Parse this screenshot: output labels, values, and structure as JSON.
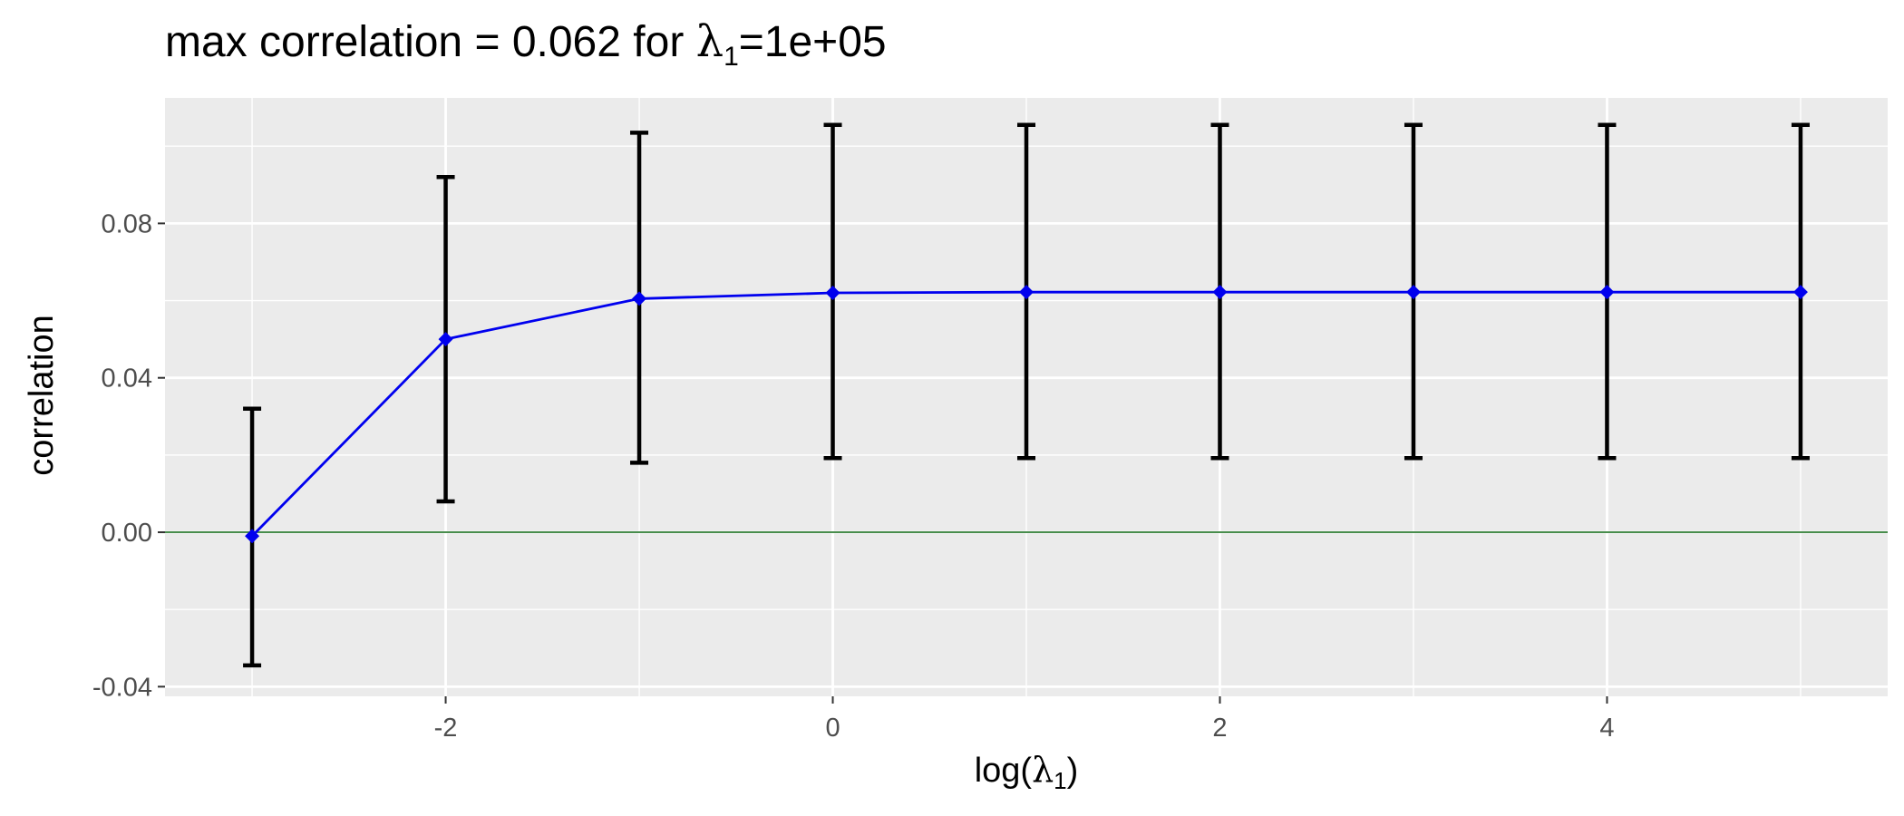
{
  "chart_data": {
    "type": "line",
    "title": {
      "prefix": "max correlation = 0.062  for  ",
      "symbol": "λ",
      "subscript": "1",
      "suffix": "=1e+05"
    },
    "xlabel": {
      "prefix": "log(",
      "symbol": "λ",
      "subscript": "1",
      "suffix": ")"
    },
    "ylabel": "correlation",
    "xlim": [
      -3.45,
      5.45
    ],
    "ylim": [
      -0.0425,
      0.1125
    ],
    "x_ticks": [
      -2,
      0,
      2,
      4
    ],
    "x_tick_labels": [
      "-2",
      "0",
      "2",
      "4"
    ],
    "y_ticks": [
      -0.04,
      0.0,
      0.04,
      0.08
    ],
    "y_tick_labels": [
      "-0.04",
      "0.00",
      "0.04",
      "0.08"
    ],
    "grid": true,
    "reference_line": {
      "y": 0,
      "color": "#2e7d32"
    },
    "series": [
      {
        "x": [
          -3,
          -2,
          -1,
          0,
          1,
          2,
          3,
          4,
          5
        ],
        "y": [
          -0.001,
          0.05,
          0.0605,
          0.062,
          0.0622,
          0.0622,
          0.0622,
          0.0622,
          0.0622
        ],
        "ymin": [
          -0.0345,
          0.008,
          0.018,
          0.0192,
          0.0192,
          0.0192,
          0.0192,
          0.0192,
          0.0192
        ],
        "ymax": [
          0.032,
          0.092,
          0.1035,
          0.1055,
          0.1055,
          0.1055,
          0.1055,
          0.1055,
          0.1055
        ],
        "color": "#0000ee",
        "errorbar_color": "#000000"
      }
    ],
    "panel_background": "#ebebeb"
  }
}
